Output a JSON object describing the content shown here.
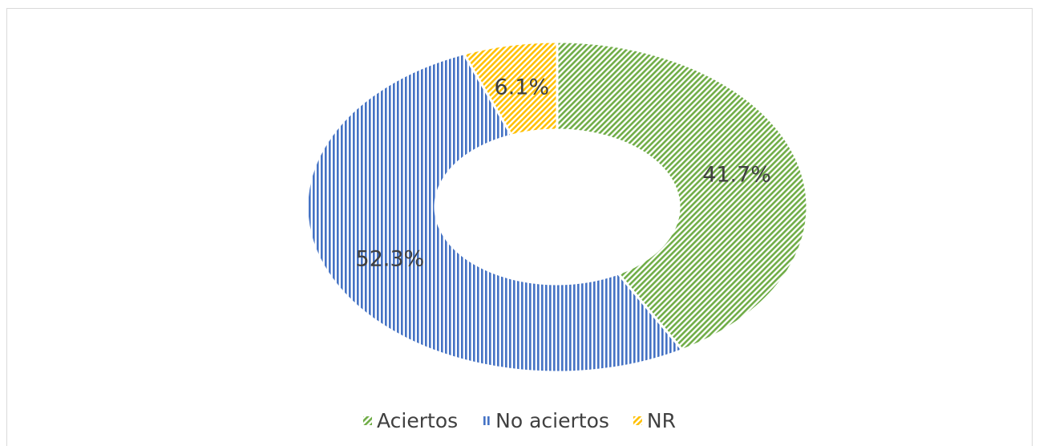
{
  "chart_data": {
    "type": "pie",
    "categories": [
      "Aciertos",
      "No aciertos",
      "NR"
    ],
    "values": [
      41.7,
      52.3,
      6.1
    ],
    "value_labels": [
      "41.7%",
      "52.3%",
      "6.1%"
    ],
    "colors": [
      "#70ad47",
      "#4472c4",
      "#ffc000"
    ],
    "donut": true,
    "legend": "bottom"
  }
}
